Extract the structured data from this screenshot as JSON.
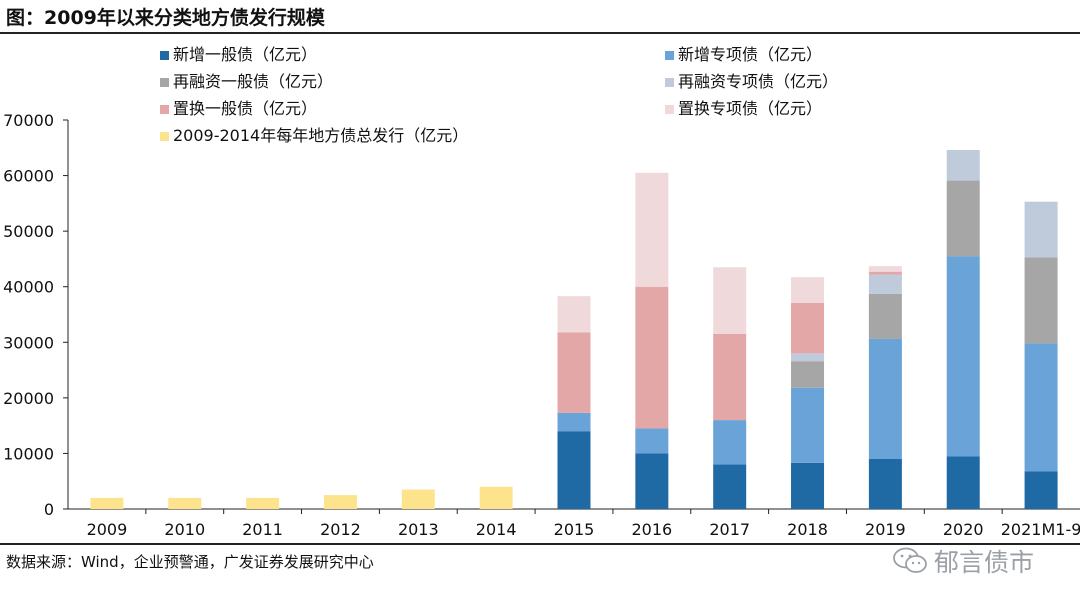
{
  "header": {
    "title": "图：2009年以来分类地方债发行规模"
  },
  "footer": {
    "source": "数据来源：Wind，企业预警通，广发证券发展研究中心",
    "watermark": "郁言债市"
  },
  "chart_data": {
    "type": "bar",
    "stacked": true,
    "title": "图：2009年以来分类地方债发行规模",
    "categories": [
      "2009",
      "2010",
      "2011",
      "2012",
      "2013",
      "2014",
      "2015",
      "2016",
      "2017",
      "2018",
      "2019",
      "2020",
      "2021M1-9"
    ],
    "ylim": [
      0,
      70000
    ],
    "yticks": [
      0,
      10000,
      20000,
      30000,
      40000,
      50000,
      60000,
      70000
    ],
    "grid": false,
    "legend_position": "top",
    "series": [
      {
        "name": "新增一般债（亿元）",
        "color": "#1f69a4",
        "values": [
          0,
          0,
          0,
          0,
          0,
          0,
          14000,
          10000,
          8000,
          8300,
          9000,
          9500,
          6800
        ]
      },
      {
        "name": "新增专项债（亿元）",
        "color": "#6aa3d8",
        "values": [
          0,
          0,
          0,
          0,
          0,
          0,
          3300,
          4500,
          8000,
          13500,
          21600,
          36000,
          23000
        ]
      },
      {
        "name": "再融资一般债（亿元）",
        "color": "#a6a6a6",
        "values": [
          0,
          0,
          0,
          0,
          0,
          0,
          0,
          0,
          0,
          4800,
          8100,
          13600,
          15500
        ]
      },
      {
        "name": "再融资专项债（亿元）",
        "color": "#bfcadb",
        "values": [
          0,
          0,
          0,
          0,
          0,
          0,
          0,
          0,
          0,
          1400,
          3500,
          5500,
          10000
        ]
      },
      {
        "name": "置换一般债（亿元）",
        "color": "#e4a7a7",
        "values": [
          0,
          0,
          0,
          0,
          0,
          0,
          14500,
          25500,
          15500,
          9100,
          500,
          0,
          0
        ]
      },
      {
        "name": "置换专项债（亿元）",
        "color": "#f0d9da",
        "values": [
          0,
          0,
          0,
          0,
          0,
          0,
          6500,
          20500,
          12000,
          4600,
          1000,
          0,
          0
        ]
      },
      {
        "name": "2009-2014年每年地方债总发行（亿元）",
        "color": "#fde48c",
        "values": [
          2000,
          2000,
          2000,
          2500,
          3500,
          4000,
          0,
          0,
          0,
          0,
          0,
          0,
          0
        ]
      }
    ]
  }
}
